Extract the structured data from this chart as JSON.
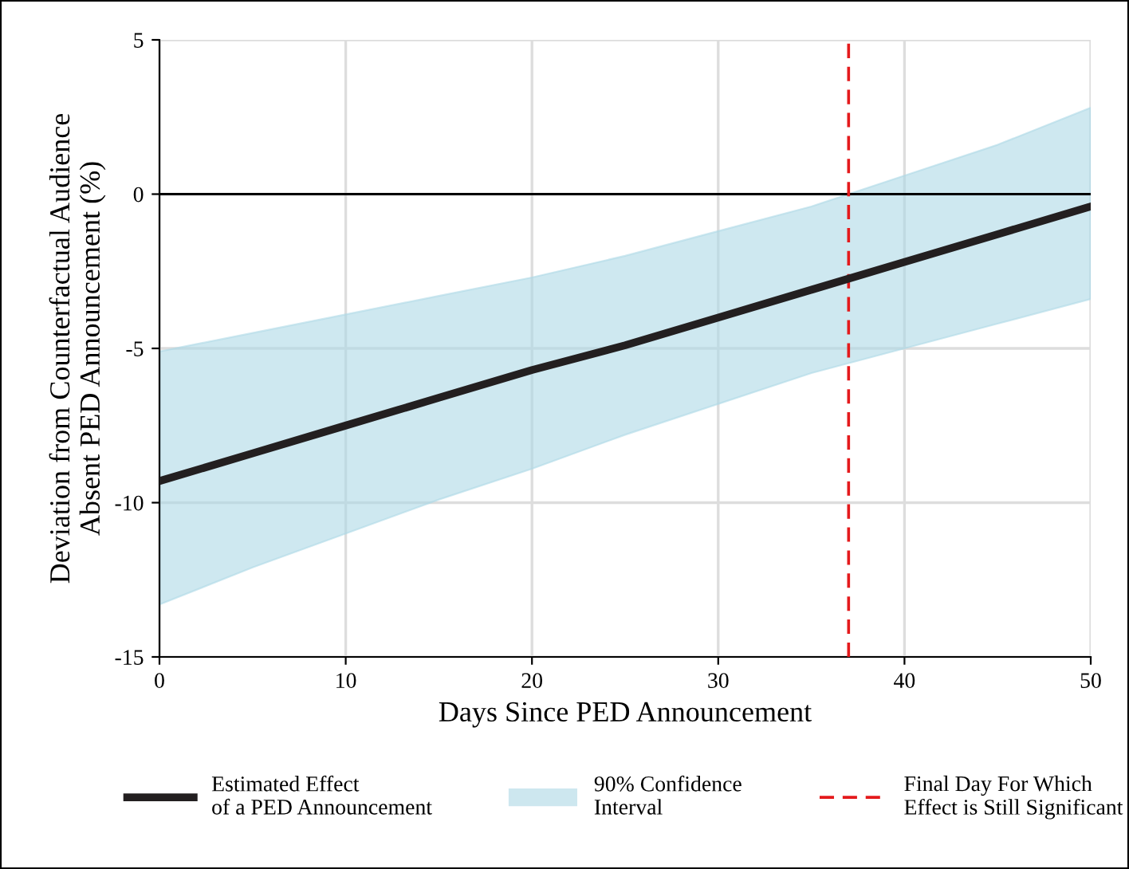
{
  "chart_data": {
    "type": "line",
    "xlabel": "Days Since PED Announcement",
    "ylabel": "Deviation from Counterfactual Audience\nAbsent PED Announcement (%)",
    "x": [
      0,
      5,
      10,
      15,
      20,
      25,
      30,
      35,
      40,
      45,
      50
    ],
    "series": [
      {
        "name": "Estimated Effect\nof a PED Announcement",
        "color": "#231f20",
        "values": [
          -9.3,
          -8.4,
          -7.5,
          -6.6,
          -5.7,
          -4.9,
          -4.0,
          -3.1,
          -2.2,
          -1.3,
          -0.4
        ],
        "lower": [
          -13.3,
          -12.1,
          -11.0,
          -9.9,
          -8.9,
          -7.8,
          -6.8,
          -5.8,
          -5.0,
          -4.2,
          -3.4
        ],
        "upper": [
          -5.1,
          -4.5,
          -3.9,
          -3.3,
          -2.7,
          -2.0,
          -1.2,
          -0.4,
          0.6,
          1.6,
          2.8
        ]
      }
    ],
    "annotations": [
      "90% Confidence\nInterval"
    ],
    "ref_lines": [
      {
        "axis": "y",
        "value": 0,
        "color": "#000000",
        "line_style": "solid"
      },
      {
        "axis": "x",
        "value": 37,
        "label": "Final Day For Which\nEffect is Still Significant",
        "color": "#e41a1c",
        "line_style": "dashed"
      }
    ],
    "xlim": [
      0,
      50
    ],
    "xticks": [
      0,
      10,
      20,
      30,
      40,
      50
    ],
    "ylim": [
      -15,
      5
    ],
    "yticks": [
      -15,
      -10,
      -5,
      0,
      5
    ],
    "grid": true,
    "legend": "bottom",
    "marker": "none"
  }
}
